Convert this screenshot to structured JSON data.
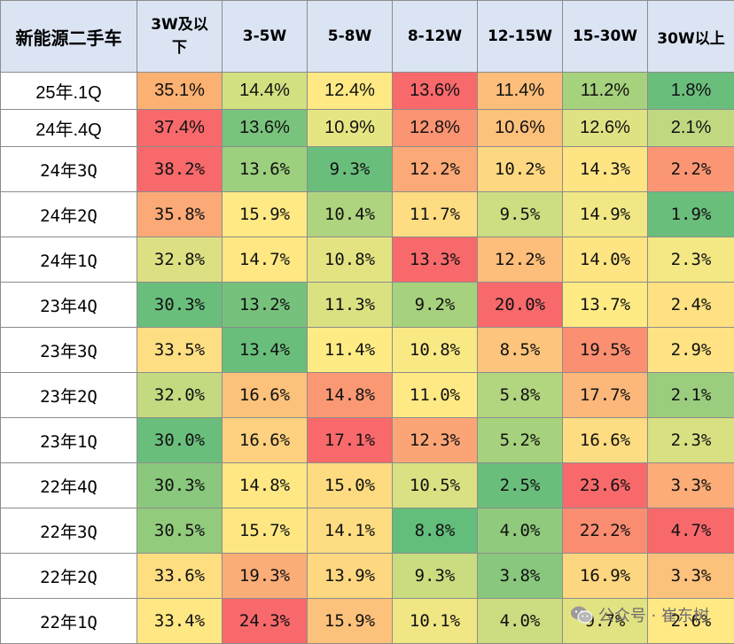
{
  "chart_data": {
    "type": "table",
    "corner_label": "新能源二手车",
    "columns": [
      "3W及以下",
      "3-5W",
      "5-8W",
      "8-12W",
      "12-15W",
      "15-30W",
      "30W以上"
    ],
    "rows": [
      {
        "label": "25年.1Q",
        "values": [
          "35.1%",
          "14.4%",
          "12.4%",
          "13.6%",
          "11.4%",
          "11.2%",
          "1.8%"
        ],
        "colors": [
          "#fbb171",
          "#d3e080",
          "#fee984",
          "#f8696b",
          "#fcbe7a",
          "#a6d17d",
          "#6abe7c"
        ]
      },
      {
        "label": "24年.4Q",
        "values": [
          "37.4%",
          "13.6%",
          "10.9%",
          "12.8%",
          "10.6%",
          "12.6%",
          "2.1%"
        ],
        "colors": [
          "#f8696b",
          "#79c37c",
          "#e6e583",
          "#fa9472",
          "#fcc17b",
          "#dfe282",
          "#c0d980"
        ]
      },
      {
        "label": "24年3Q",
        "values": [
          "38.2%",
          "13.6%",
          "9.3%",
          "12.2%",
          "10.2%",
          "14.3%",
          "2.2%"
        ],
        "colors": [
          "#f8696b",
          "#9ccf7e",
          "#6abe7c",
          "#fba976",
          "#fed880",
          "#fee483",
          "#fa9673"
        ]
      },
      {
        "label": "24年2Q",
        "values": [
          "35.8%",
          "15.9%",
          "10.4%",
          "11.7%",
          "9.5%",
          "14.9%",
          "1.9%"
        ],
        "colors": [
          "#fba976",
          "#ffe984",
          "#afd47f",
          "#fedc81",
          "#ccde81",
          "#f1e784",
          "#6abe7c"
        ]
      },
      {
        "label": "24年1Q",
        "values": [
          "32.8%",
          "14.7%",
          "10.8%",
          "13.3%",
          "12.2%",
          "14.0%",
          "2.3%"
        ],
        "colors": [
          "#dce082",
          "#ffe784",
          "#e3e382",
          "#f8696b",
          "#fcbe7a",
          "#fee482",
          "#f3e884"
        ]
      },
      {
        "label": "23年4Q",
        "values": [
          "30.3%",
          "13.2%",
          "11.3%",
          "9.2%",
          "20.0%",
          "13.7%",
          "2.4%"
        ],
        "colors": [
          "#6abe7c",
          "#76c27c",
          "#dae181",
          "#a6d17d",
          "#f8696b",
          "#ffeb84",
          "#ffe082"
        ]
      },
      {
        "label": "23年3Q",
        "values": [
          "33.5%",
          "13.4%",
          "11.4%",
          "10.8%",
          "8.5%",
          "19.5%",
          "2.9%"
        ],
        "colors": [
          "#fede82",
          "#6abe7c",
          "#ffeb84",
          "#f9e985",
          "#fcc47c",
          "#fa8f71",
          "#fee283"
        ]
      },
      {
        "label": "23年2Q",
        "values": [
          "32.0%",
          "16.6%",
          "14.8%",
          "11.0%",
          "5.8%",
          "17.7%",
          "2.1%"
        ],
        "colors": [
          "#c3da80",
          "#fcc27b",
          "#fa9873",
          "#ffe984",
          "#b2d57f",
          "#fcb77a",
          "#9bcd7e"
        ]
      },
      {
        "label": "23年1Q",
        "values": [
          "30.0%",
          "16.6%",
          "17.1%",
          "12.3%",
          "5.2%",
          "16.6%",
          "2.3%"
        ],
        "colors": [
          "#6abe7c",
          "#fdd17f",
          "#f8696b",
          "#fba576",
          "#a6d17d",
          "#fedc81",
          "#d8e081"
        ]
      },
      {
        "label": "22年4Q",
        "values": [
          "30.3%",
          "14.8%",
          "15.0%",
          "10.5%",
          "2.5%",
          "23.6%",
          "3.3%"
        ],
        "colors": [
          "#8ac87d",
          "#ffe884",
          "#fedb81",
          "#d9e182",
          "#6abe7c",
          "#f8696b",
          "#fbac77"
        ]
      },
      {
        "label": "22年3Q",
        "values": [
          "30.5%",
          "15.7%",
          "14.1%",
          "8.8%",
          "4.0%",
          "22.2%",
          "4.7%"
        ],
        "colors": [
          "#93cb7d",
          "#fee783",
          "#fedc81",
          "#63be7b",
          "#90ca7d",
          "#fa8c71",
          "#f8696b"
        ]
      },
      {
        "label": "22年2Q",
        "values": [
          "33.6%",
          "19.3%",
          "13.9%",
          "9.3%",
          "3.8%",
          "16.9%",
          "3.3%"
        ],
        "colors": [
          "#fede81",
          "#fbad77",
          "#fed880",
          "#c9dc80",
          "#88c77d",
          "#fdd680",
          "#fcc17b"
        ]
      },
      {
        "label": "22年1Q",
        "values": [
          "33.4%",
          "24.3%",
          "15.9%",
          "10.1%",
          "4.0%",
          "9.7%",
          "2.6%"
        ],
        "colors": [
          "#ffe784",
          "#f8696b",
          "#fcc17b",
          "#f0e684",
          "#ccdc81",
          "#e1e282",
          "#ffe984"
        ]
      }
    ]
  },
  "watermark": {
    "text": "公众号 · 崔东树",
    "icon": "wechat-icon"
  }
}
